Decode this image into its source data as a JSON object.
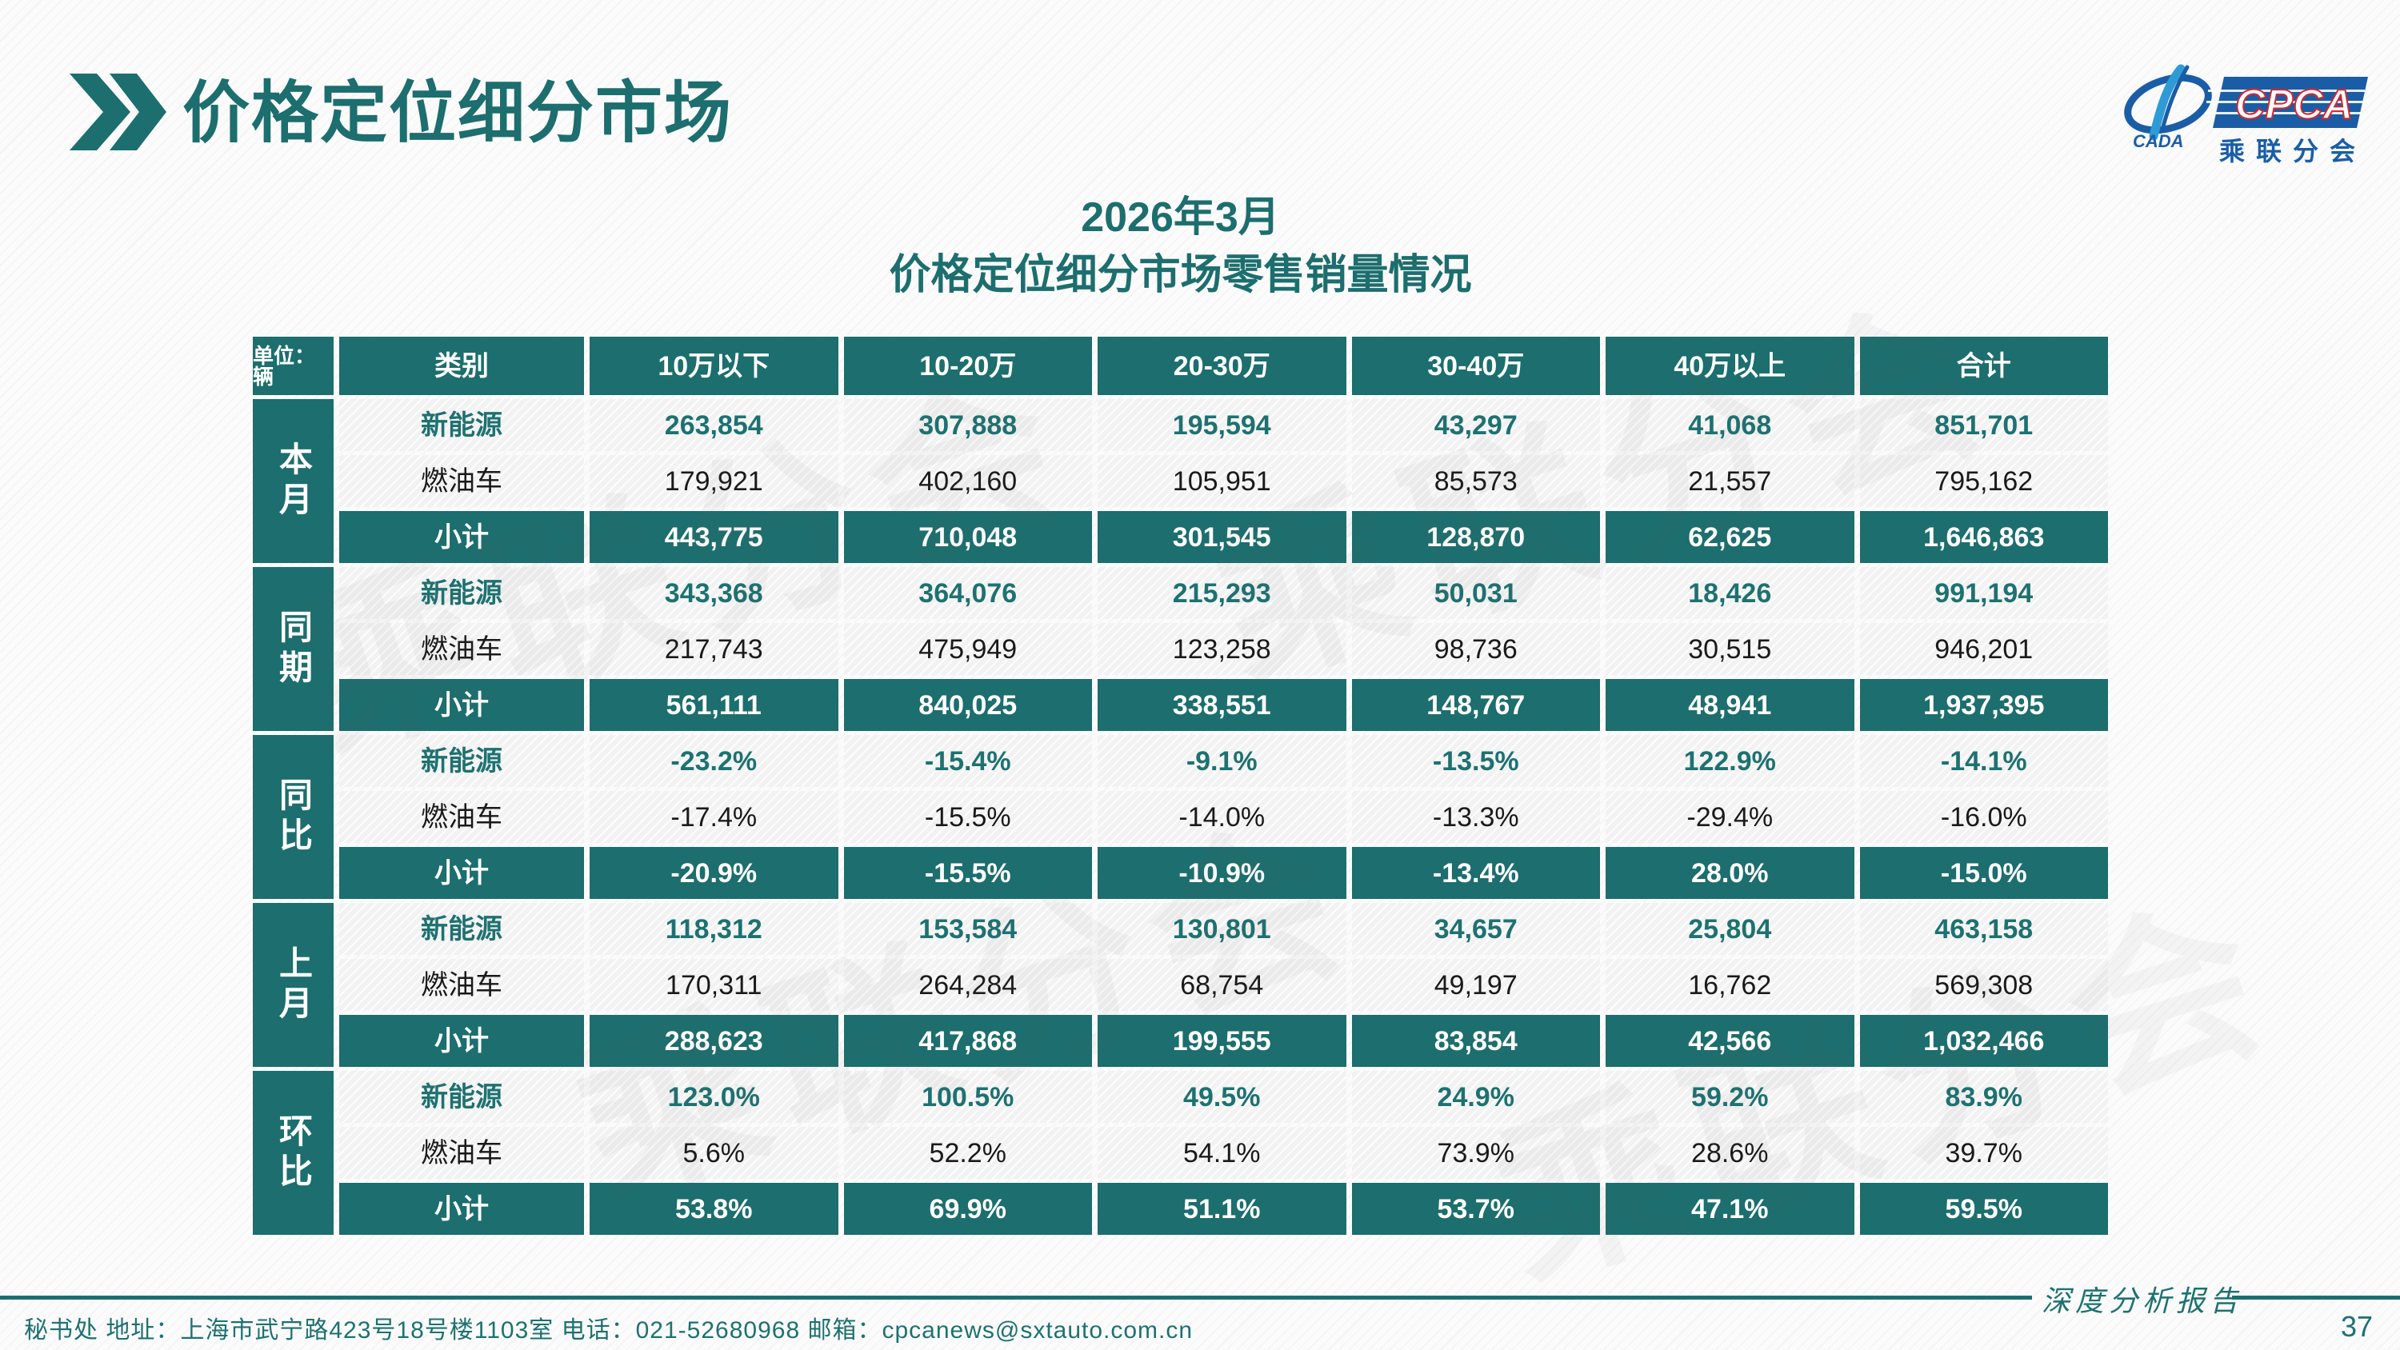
{
  "page": {
    "title": "价格定位细分市场"
  },
  "logo": {
    "cada_label": "CADA",
    "cpca_label": "CPCA",
    "org_label": "乘联分会"
  },
  "subtitle": {
    "line1": "2026年3月",
    "line2": "价格定位细分市场零售销量情况"
  },
  "table": {
    "unit_label": "单位：辆",
    "columns": [
      "类别",
      "10万以下",
      "10-20万",
      "20-30万",
      "30-40万",
      "40万以上",
      "合计"
    ],
    "groups": [
      {
        "label": "本月",
        "rows": [
          {
            "category": "新能源",
            "style": "nev",
            "values": [
              "263,854",
              "307,888",
              "195,594",
              "43,297",
              "41,068",
              "851,701"
            ]
          },
          {
            "category": "燃油车",
            "style": "fuel",
            "values": [
              "179,921",
              "402,160",
              "105,951",
              "85,573",
              "21,557",
              "795,162"
            ]
          },
          {
            "category": "小计",
            "style": "subtotal",
            "values": [
              "443,775",
              "710,048",
              "301,545",
              "128,870",
              "62,625",
              "1,646,863"
            ]
          }
        ]
      },
      {
        "label": "同期",
        "rows": [
          {
            "category": "新能源",
            "style": "nev",
            "values": [
              "343,368",
              "364,076",
              "215,293",
              "50,031",
              "18,426",
              "991,194"
            ]
          },
          {
            "category": "燃油车",
            "style": "fuel",
            "values": [
              "217,743",
              "475,949",
              "123,258",
              "98,736",
              "30,515",
              "946,201"
            ]
          },
          {
            "category": "小计",
            "style": "subtotal",
            "values": [
              "561,111",
              "840,025",
              "338,551",
              "148,767",
              "48,941",
              "1,937,395"
            ]
          }
        ]
      },
      {
        "label": "同比",
        "rows": [
          {
            "category": "新能源",
            "style": "nev",
            "values": [
              "-23.2%",
              "-15.4%",
              "-9.1%",
              "-13.5%",
              "122.9%",
              "-14.1%"
            ]
          },
          {
            "category": "燃油车",
            "style": "fuel",
            "values": [
              "-17.4%",
              "-15.5%",
              "-14.0%",
              "-13.3%",
              "-29.4%",
              "-16.0%"
            ]
          },
          {
            "category": "小计",
            "style": "subtotal",
            "values": [
              "-20.9%",
              "-15.5%",
              "-10.9%",
              "-13.4%",
              "28.0%",
              "-15.0%"
            ]
          }
        ]
      },
      {
        "label": "上月",
        "rows": [
          {
            "category": "新能源",
            "style": "nev",
            "values": [
              "118,312",
              "153,584",
              "130,801",
              "34,657",
              "25,804",
              "463,158"
            ]
          },
          {
            "category": "燃油车",
            "style": "fuel",
            "values": [
              "170,311",
              "264,284",
              "68,754",
              "49,197",
              "16,762",
              "569,308"
            ]
          },
          {
            "category": "小计",
            "style": "subtotal",
            "values": [
              "288,623",
              "417,868",
              "199,555",
              "83,854",
              "42,566",
              "1,032,466"
            ]
          }
        ]
      },
      {
        "label": "环比",
        "rows": [
          {
            "category": "新能源",
            "style": "nev",
            "values": [
              "123.0%",
              "100.5%",
              "49.5%",
              "24.9%",
              "59.2%",
              "83.9%"
            ]
          },
          {
            "category": "燃油车",
            "style": "fuel",
            "values": [
              "5.6%",
              "52.2%",
              "54.1%",
              "73.9%",
              "28.6%",
              "39.7%"
            ]
          },
          {
            "category": "小计",
            "style": "subtotal",
            "values": [
              "53.8%",
              "69.9%",
              "51.1%",
              "53.7%",
              "47.1%",
              "59.5%"
            ]
          }
        ]
      }
    ]
  },
  "watermark": {
    "text": "乘联分会"
  },
  "footer": {
    "text": "秘书处   地址：上海市武宁路423号18号楼1103室  电话：021-52680968   邮箱：cpcanews@sxtauto.com.cn",
    "report_label": "深度分析报告",
    "page_number": "37"
  },
  "colors": {
    "teal": "#1d6e6e",
    "teal_text": "#1e7171",
    "logo_blue": "#1a5da6",
    "logo_light_blue": "#2f9bd6",
    "logo_red": "#d9262c",
    "light_cell": "#f2f2f2"
  }
}
